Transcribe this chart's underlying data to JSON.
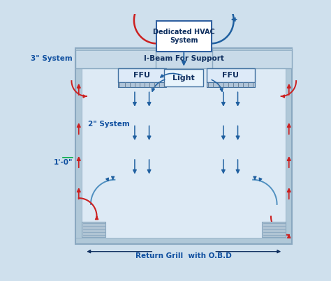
{
  "bg_color": "#cfe0ed",
  "room_bg": "#ddeaf5",
  "wall_color": "#8aa8c0",
  "wall_fill": "#b0c8d8",
  "ibeam_fill": "#c8dae8",
  "blue": "#2060a0",
  "blue_light": "#5090c0",
  "red": "#cc2020",
  "text_blue": "#1050a0",
  "text_dark": "#103060",
  "white": "#ffffff",
  "labels": {
    "hvac": "Dedicated HVAC\nSystem",
    "ibeam": "I-Beam For Support",
    "ffu": "FFU",
    "light": "Light",
    "system_3": "3\" System",
    "system_2": "2\" System",
    "height_1": "1'-0\"",
    "return_grill": "Return Grill  with O.B.D"
  }
}
